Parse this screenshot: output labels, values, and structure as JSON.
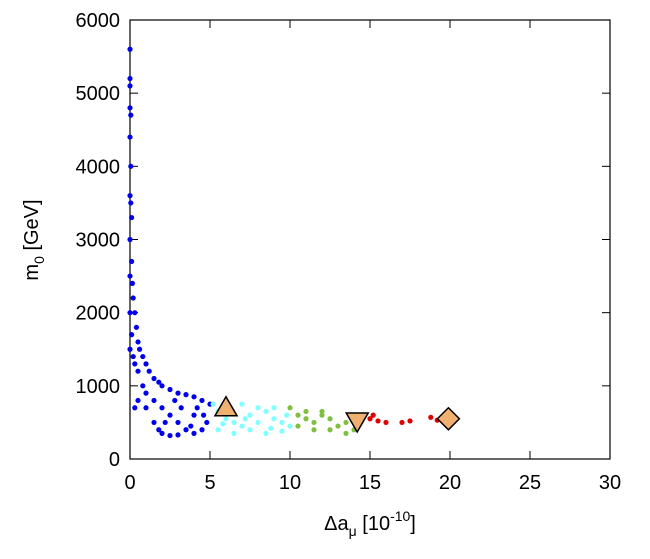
{
  "chart_data": {
    "type": "scatter",
    "xlabel": {
      "main": "Δa",
      "sub": "μ",
      "rest": " [10",
      "sup": "-10",
      "end": "]"
    },
    "ylabel": {
      "main": "m",
      "sub": "0",
      "rest": " [GeV]"
    },
    "xlim": [
      0,
      30
    ],
    "ylim": [
      0,
      6000
    ],
    "xticks": [
      0,
      5,
      10,
      15,
      20,
      25,
      30
    ],
    "yticks": [
      0,
      1000,
      2000,
      3000,
      4000,
      5000,
      6000
    ],
    "series": [
      {
        "color": "#0000ee",
        "marker": "dot",
        "x": [
          0,
          0,
          0.05,
          0,
          0.05,
          0,
          0.1,
          0,
          0.1,
          0.15,
          0.2,
          0.3,
          0.4,
          0.5,
          0.6,
          0.8,
          1,
          1.2,
          1.5,
          1.8,
          2,
          2.5,
          3,
          3.5,
          4,
          4.5,
          5,
          0.3,
          0.5,
          0.8,
          1,
          1.5,
          2,
          2.5,
          3,
          3.5,
          4,
          2,
          2.5,
          3,
          4.5,
          1,
          0.5,
          0.3,
          1.5,
          1.8,
          2.2,
          3.2,
          4,
          4.8,
          3.8,
          0,
          0.1,
          0.2,
          0,
          0,
          0.05,
          0,
          0,
          2.8,
          4.2,
          4.6
        ],
        "y": [
          5600,
          5200,
          4700,
          4400,
          4000,
          3600,
          3300,
          3000,
          2700,
          2400,
          2200,
          2000,
          1800,
          1600,
          1500,
          1400,
          1300,
          1200,
          1100,
          1050,
          1000,
          950,
          900,
          880,
          850,
          800,
          750,
          1300,
          1200,
          1000,
          900,
          800,
          700,
          600,
          500,
          400,
          350,
          350,
          320,
          330,
          400,
          700,
          800,
          700,
          500,
          400,
          500,
          700,
          600,
          500,
          450,
          1500,
          1700,
          1400,
          2000,
          2500,
          3500,
          4800,
          5100,
          800,
          700,
          600
        ]
      },
      {
        "color": "#80ffff",
        "marker": "dot",
        "x": [
          5.2,
          5.5,
          6,
          6.5,
          7,
          7.5,
          8,
          8.5,
          9,
          9.5,
          10,
          5.5,
          6.5,
          7.5,
          8.5,
          9.5,
          6,
          7,
          8,
          9,
          5.8,
          7.2,
          8.8,
          9.8
        ],
        "y": [
          750,
          650,
          550,
          500,
          450,
          600,
          700,
          650,
          550,
          500,
          450,
          400,
          350,
          400,
          350,
          380,
          700,
          750,
          500,
          700,
          480,
          550,
          420,
          600
        ]
      },
      {
        "color": "#80c040",
        "marker": "dot",
        "x": [
          10,
          10.5,
          11,
          11.5,
          12,
          12.5,
          13,
          13.5,
          14,
          14.5,
          10.5,
          11.5,
          12.5,
          13.5,
          12,
          11
        ],
        "y": [
          700,
          600,
          550,
          500,
          600,
          550,
          450,
          500,
          400,
          550,
          450,
          400,
          400,
          350,
          650,
          650
        ]
      },
      {
        "color": "#e00000",
        "marker": "dot",
        "x": [
          15,
          15.2,
          15.5,
          16,
          17,
          17.5,
          18.8,
          19.2
        ],
        "y": [
          550,
          600,
          520,
          500,
          500,
          520,
          570,
          530
        ]
      },
      {
        "color": "#f0b070",
        "marker": "triangle-up",
        "x": [
          6
        ],
        "y": [
          700
        ]
      },
      {
        "color": "#f0b070",
        "marker": "triangle-down",
        "x": [
          14.2
        ],
        "y": [
          520
        ]
      },
      {
        "color": "#f0b070",
        "marker": "diamond",
        "x": [
          19.9
        ],
        "y": [
          550
        ]
      }
    ]
  }
}
